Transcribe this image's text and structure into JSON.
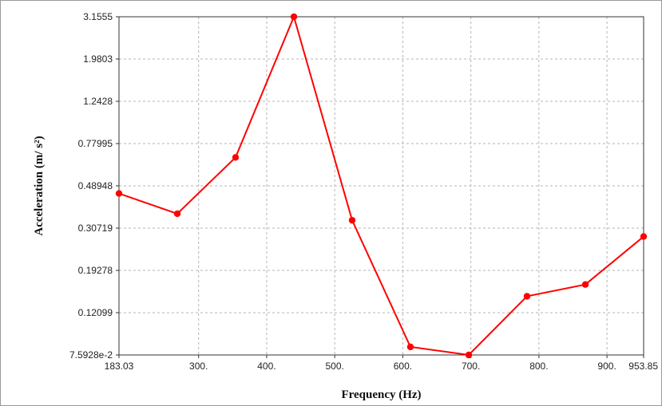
{
  "chart_data": {
    "type": "line",
    "title": "",
    "xlabel": "Frequency (Hz)",
    "ylabel": "Acceleration (m/ s²)",
    "x_scale": "linear",
    "y_scale": "log",
    "xlim": [
      183.03,
      953.85
    ],
    "ylim": [
      0.075928,
      3.1555
    ],
    "x_tick_values": [
      183.03,
      300,
      400,
      500,
      600,
      700,
      800,
      900,
      953.85
    ],
    "x_tick_labels": [
      "183.03",
      "300.",
      "400.",
      "500.",
      "600.",
      "700.",
      "800.",
      "900.",
      "953.85"
    ],
    "y_tick_values": [
      0.075928,
      0.12099,
      0.19278,
      0.30719,
      0.48948,
      0.77995,
      1.2428,
      1.9803,
      3.1555
    ],
    "y_tick_labels": [
      "7.5928e-2",
      "0.12099",
      "0.19278",
      "0.30719",
      "0.48948",
      "0.77995",
      "1.2428",
      "1.9803",
      "3.1555"
    ],
    "grid": true,
    "legend": "none",
    "colors": {
      "line": "#ff0000",
      "grid": "#b4b4b4",
      "axis": "#333333"
    },
    "series": [
      {
        "x": [
          183.03,
          268.7,
          354.3,
          440.0,
          525.6,
          611.2,
          696.9,
          782.5,
          868.2,
          953.85
        ],
        "y": [
          0.45,
          0.36,
          0.67,
          3.1555,
          0.335,
          0.083,
          0.075928,
          0.145,
          0.165,
          0.28
        ]
      }
    ]
  }
}
